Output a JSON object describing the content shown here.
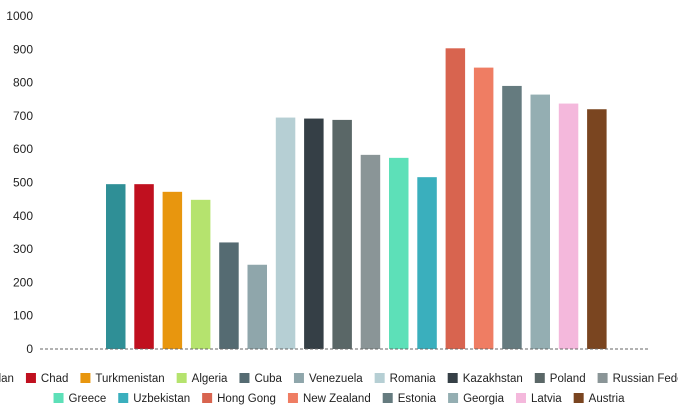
{
  "chart_data": {
    "type": "bar",
    "title": "",
    "xlabel": "",
    "ylabel": "",
    "ylim": [
      0,
      1000
    ],
    "yticks": [
      0,
      100,
      200,
      300,
      400,
      500,
      600,
      700,
      800,
      900,
      1000
    ],
    "grid": false,
    "baseline_style": "dashed",
    "legend_position": "bottom",
    "series": [
      {
        "name": "Sudan",
        "value": 495,
        "color": "#2f8f96"
      },
      {
        "name": "Chad",
        "value": 495,
        "color": "#c0101f"
      },
      {
        "name": "Turkmenistan",
        "value": 472,
        "color": "#e8960e"
      },
      {
        "name": "Algeria",
        "value": 448,
        "color": "#b5e36e"
      },
      {
        "name": "Cuba",
        "value": 320,
        "color": "#556b72"
      },
      {
        "name": "Venezuela",
        "value": 253,
        "color": "#8fa6ab"
      },
      {
        "name": "Romania",
        "value": 695,
        "color": "#b6cfd4"
      },
      {
        "name": "Kazakhstan",
        "value": 692,
        "color": "#353f46"
      },
      {
        "name": "Poland",
        "value": 688,
        "color": "#5a6767"
      },
      {
        "name": "Russian Federation",
        "value": 583,
        "color": "#8a9597"
      },
      {
        "name": "Greece",
        "value": 574,
        "color": "#5de0b8"
      },
      {
        "name": "Uzbekistan",
        "value": 516,
        "color": "#3aafbd"
      },
      {
        "name": "Hong Gong",
        "value": 903,
        "color": "#d8644f"
      },
      {
        "name": "New Zealand",
        "value": 845,
        "color": "#ef7d63"
      },
      {
        "name": "Estonia",
        "value": 790,
        "color": "#657b7f"
      },
      {
        "name": "Georgia",
        "value": 764,
        "color": "#94aeb2"
      },
      {
        "name": "Latvia",
        "value": 737,
        "color": "#f4b8dc"
      },
      {
        "name": "Austria",
        "value": 720,
        "color": "#7a4520"
      }
    ]
  }
}
